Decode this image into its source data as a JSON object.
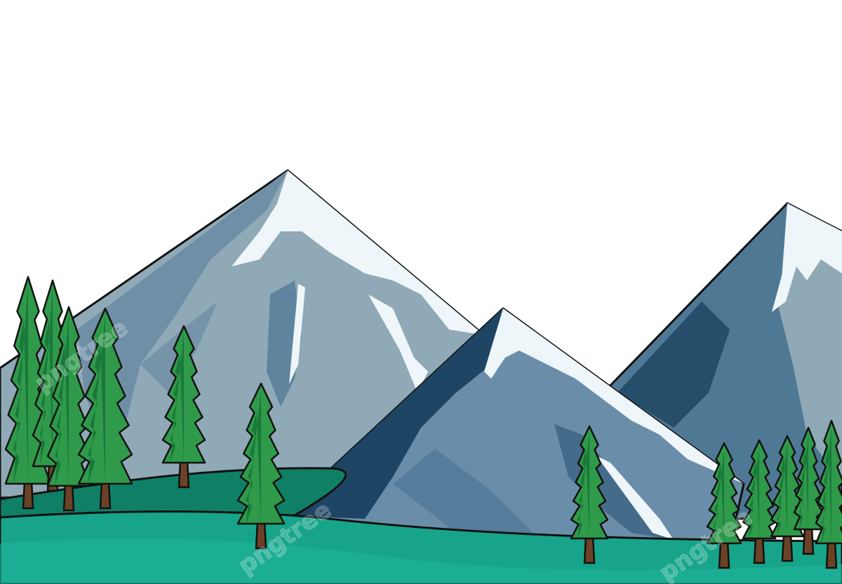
{
  "scene": {
    "subject": "cartoon mountain landscape with pine trees",
    "colors": {
      "sky": "#ffffff",
      "outline": "#111111",
      "mountain_light": "#8fa9b6",
      "mountain_mid": "#5f84a0",
      "mountain_dark": "#1e4563",
      "snow": "#eef6fa",
      "grass_front": "#17a48a",
      "grass_back": "#0f8066",
      "tree_light": "#2f9a4a",
      "tree_dark": "#0f6a33",
      "trunk": "#6b4226"
    }
  },
  "watermark": {
    "text": "pngtree"
  }
}
